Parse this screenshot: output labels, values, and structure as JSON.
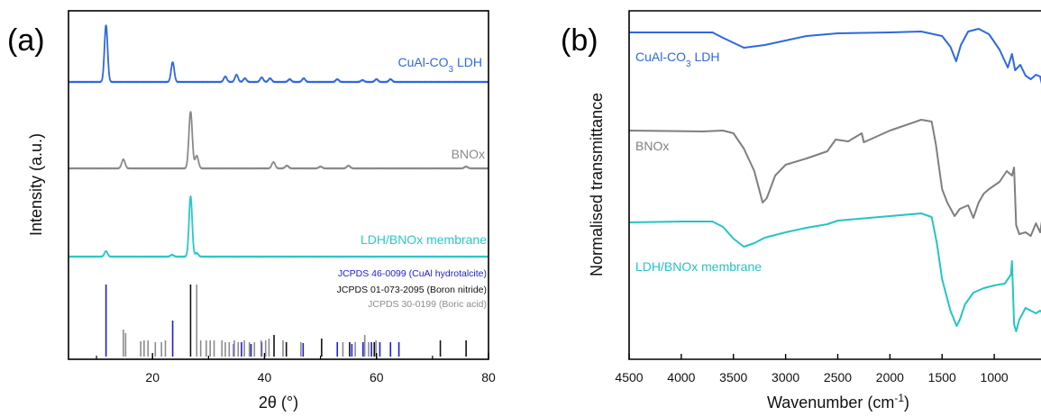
{
  "chart_data": [
    {
      "panel": "(a)",
      "type": "line",
      "xlabel": "2θ (°)",
      "ylabel": "Intensity (a.u.)",
      "xlim": [
        5,
        80
      ],
      "xticks": [
        20,
        40,
        60,
        80
      ],
      "series": [
        {
          "name": "CuAl-CO3 LDH",
          "color": "#2f68e0",
          "peaks": [
            [
              11.7,
              63
            ],
            [
              23.6,
              22
            ],
            [
              33.0,
              6
            ],
            [
              35.0,
              8
            ],
            [
              36.5,
              4
            ],
            [
              39.5,
              5
            ],
            [
              41.0,
              4
            ],
            [
              44.5,
              3
            ],
            [
              47.0,
              4
            ],
            [
              53.0,
              3
            ],
            [
              57.5,
              2
            ],
            [
              60.0,
              3
            ],
            [
              62.5,
              3
            ]
          ]
        },
        {
          "name": "BNOx",
          "color": "#8a8a8a",
          "peaks": [
            [
              14.8,
              10
            ],
            [
              26.8,
              63
            ],
            [
              27.9,
              14
            ],
            [
              41.6,
              7
            ],
            [
              44.0,
              3
            ],
            [
              50.0,
              2
            ],
            [
              55.0,
              3
            ],
            [
              76.0,
              2
            ]
          ]
        },
        {
          "name": "LDH/BNOx membrane",
          "color": "#2ac8c8",
          "peaks": [
            [
              11.7,
              6
            ],
            [
              23.5,
              2
            ],
            [
              26.8,
              67
            ],
            [
              27.9,
              4
            ]
          ]
        }
      ],
      "references": [
        {
          "label": "JCPDS 46-0099 (CuAl hydrotalcite)",
          "color": "#1c1ce0",
          "lines": [
            [
              11.7,
              80
            ],
            [
              23.6,
              40
            ],
            [
              34.5,
              14
            ],
            [
              35.9,
              16
            ],
            [
              37.6,
              14
            ],
            [
              39.5,
              16
            ],
            [
              46.9,
              15
            ],
            [
              53.0,
              16
            ],
            [
              55.6,
              14
            ],
            [
              57.6,
              16
            ],
            [
              59.1,
              16
            ],
            [
              60.6,
              16
            ],
            [
              62.5,
              16
            ],
            [
              64.0,
              16
            ]
          ]
        },
        {
          "label": "JCPDS 01-073-2095 (Boron nitride)",
          "color": "#111111",
          "lines": [
            [
              26.8,
              80
            ],
            [
              41.7,
              24
            ],
            [
              43.9,
              16
            ],
            [
              50.2,
              20
            ],
            [
              55.2,
              16
            ],
            [
              59.6,
              16
            ],
            [
              71.4,
              18
            ],
            [
              76.0,
              18
            ]
          ]
        },
        {
          "label": "JCPDS 30-0199 (Boric acid)",
          "color": "#8c8c8c",
          "lines": [
            [
              14.8,
              30
            ],
            [
              15.2,
              26
            ],
            [
              17.9,
              17
            ],
            [
              18.5,
              18
            ],
            [
              19.2,
              18
            ],
            [
              20.5,
              16
            ],
            [
              21.6,
              16
            ],
            [
              22.3,
              18
            ],
            [
              27.9,
              80
            ],
            [
              28.6,
              18
            ],
            [
              29.6,
              18
            ],
            [
              30.3,
              18
            ],
            [
              31.0,
              18
            ],
            [
              32.4,
              18
            ],
            [
              33.0,
              16
            ],
            [
              33.7,
              16
            ],
            [
              34.6,
              18
            ],
            [
              35.3,
              16
            ],
            [
              36.4,
              18
            ],
            [
              37.3,
              16
            ],
            [
              38.2,
              16
            ],
            [
              39.4,
              18
            ],
            [
              40.2,
              18
            ],
            [
              40.8,
              20
            ],
            [
              43.3,
              18
            ],
            [
              46.5,
              16
            ],
            [
              54.0,
              16
            ],
            [
              56.2,
              16
            ],
            [
              57.9,
              24
            ],
            [
              58.6,
              16
            ],
            [
              59.9,
              18
            ]
          ]
        }
      ]
    },
    {
      "panel": "(b)",
      "type": "line",
      "xlabel": "Wavenumber (cm⁻¹)",
      "ylabel": "Normalised transmittance",
      "xlim": [
        4500,
        500
      ],
      "xticks": [
        4500,
        4000,
        3500,
        3000,
        2500,
        2000,
        1500,
        1000,
        500
      ],
      "series": [
        {
          "name": "CuAl-CO3 LDH",
          "color": "#2f68e0",
          "points": [
            [
              4500,
              36
            ],
            [
              3700,
              36
            ],
            [
              3600,
              42
            ],
            [
              3400,
              53
            ],
            [
              3200,
              50
            ],
            [
              3000,
              45
            ],
            [
              2800,
              40
            ],
            [
              2500,
              37
            ],
            [
              2000,
              36
            ],
            [
              1700,
              35
            ],
            [
              1500,
              40
            ],
            [
              1420,
              52
            ],
            [
              1365,
              68
            ],
            [
              1320,
              50
            ],
            [
              1250,
              35
            ],
            [
              1150,
              32
            ],
            [
              1050,
              38
            ],
            [
              950,
              55
            ],
            [
              870,
              75
            ],
            [
              830,
              60
            ],
            [
              800,
              78
            ],
            [
              750,
              72
            ],
            [
              700,
              84
            ],
            [
              650,
              88
            ],
            [
              600,
              83
            ],
            [
              560,
              85
            ],
            [
              530,
              100
            ],
            [
              510,
              138
            ],
            [
              500,
              148
            ]
          ]
        },
        {
          "name": "BNOx",
          "color": "#7f7f7f",
          "points": [
            [
              4500,
              145
            ],
            [
              3800,
              146
            ],
            [
              3600,
              145
            ],
            [
              3500,
              148
            ],
            [
              3400,
              165
            ],
            [
              3300,
              190
            ],
            [
              3220,
              225
            ],
            [
              3180,
              220
            ],
            [
              3100,
              195
            ],
            [
              3000,
              183
            ],
            [
              2800,
              176
            ],
            [
              2600,
              168
            ],
            [
              2520,
              155
            ],
            [
              2400,
              157
            ],
            [
              2270,
              148
            ],
            [
              2250,
              158
            ],
            [
              2000,
              145
            ],
            [
              1700,
              133
            ],
            [
              1600,
              135
            ],
            [
              1560,
              160
            ],
            [
              1500,
              210
            ],
            [
              1450,
              225
            ],
            [
              1380,
              240
            ],
            [
              1330,
              232
            ],
            [
              1250,
              228
            ],
            [
              1200,
              242
            ],
            [
              1150,
              225
            ],
            [
              1100,
              215
            ],
            [
              1050,
              210
            ],
            [
              950,
              202
            ],
            [
              880,
              190
            ],
            [
              830,
              195
            ],
            [
              810,
              186
            ],
            [
              790,
              250
            ],
            [
              760,
              260
            ],
            [
              700,
              258
            ],
            [
              650,
              262
            ],
            [
              600,
              248
            ],
            [
              560,
              258
            ],
            [
              520,
              228
            ],
            [
              500,
              210
            ]
          ]
        },
        {
          "name": "LDH/BNOx membrane",
          "color": "#26c4c4",
          "points": [
            [
              4500,
              247
            ],
            [
              4000,
              246
            ],
            [
              3700,
              246
            ],
            [
              3600,
              252
            ],
            [
              3500,
              265
            ],
            [
              3400,
              274
            ],
            [
              3300,
              270
            ],
            [
              3200,
              264
            ],
            [
              3000,
              258
            ],
            [
              2800,
              253
            ],
            [
              2600,
              249
            ],
            [
              2500,
              245
            ],
            [
              2300,
              243
            ],
            [
              2000,
              240
            ],
            [
              1700,
              237
            ],
            [
              1600,
              241
            ],
            [
              1550,
              270
            ],
            [
              1500,
              310
            ],
            [
              1420,
              345
            ],
            [
              1360,
              362
            ],
            [
              1330,
              355
            ],
            [
              1280,
              338
            ],
            [
              1200,
              325
            ],
            [
              1100,
              320
            ],
            [
              1000,
              317
            ],
            [
              900,
              315
            ],
            [
              840,
              305
            ],
            [
              830,
              290
            ],
            [
              810,
              360
            ],
            [
              790,
              368
            ],
            [
              760,
              355
            ],
            [
              700,
              342
            ],
            [
              650,
              345
            ],
            [
              600,
              348
            ],
            [
              560,
              345
            ],
            [
              520,
              350
            ],
            [
              500,
              350
            ]
          ]
        }
      ]
    }
  ]
}
